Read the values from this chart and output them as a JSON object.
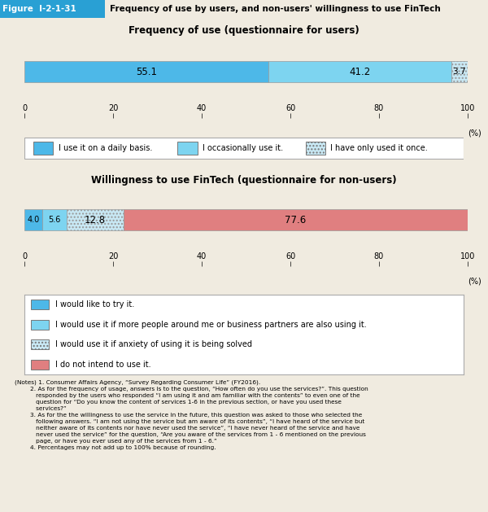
{
  "title_main": "Frequency of use by users, and non-users' willingness to use FinTech",
  "figure_label": "Figure  I-2-1-31",
  "chart1_title": "Frequency of use (questionnaire for users)",
  "chart1_values": [
    55.1,
    41.2,
    3.7
  ],
  "chart1_colors": [
    "#4db8e8",
    "#7dd4f0",
    "#c8e8f4"
  ],
  "chart1_hatches": [
    null,
    null,
    "...."
  ],
  "chart1_labels": [
    "55.1",
    "41.2",
    "3.7"
  ],
  "chart1_legend": [
    "I use it on a daily basis.",
    "I occasionally use it.",
    "I have only used it once."
  ],
  "chart1_legend_colors": [
    "#4db8e8",
    "#7dd4f0",
    "#c8e8f4"
  ],
  "chart1_legend_hatches": [
    null,
    null,
    "...."
  ],
  "chart2_title": "Willingness to use FinTech (questionnaire for non-users)",
  "chart2_values": [
    4.0,
    5.6,
    12.8,
    77.6
  ],
  "chart2_colors": [
    "#4db8e8",
    "#7dd4f0",
    "#c8e8f4",
    "#e07f80"
  ],
  "chart2_hatches": [
    null,
    null,
    "....",
    null
  ],
  "chart2_labels": [
    "4.0",
    "5.6",
    "12.8",
    "77.6"
  ],
  "chart2_legend": [
    "I would like to try it.",
    "I would use it if more people around me or business partners are also using it.",
    "I would use it if anxiety of using it is being solved",
    "I do not intend to use it."
  ],
  "chart2_legend_colors": [
    "#4db8e8",
    "#7dd4f0",
    "#c8e8f4",
    "#e07f80"
  ],
  "chart2_legend_hatches": [
    null,
    null,
    "....",
    null
  ],
  "xlim": [
    0,
    100
  ],
  "xticks": [
    0,
    20,
    40,
    60,
    80,
    100
  ],
  "xlabel_suffix": "(%)",
  "bg_color": "#f0ebe0",
  "bar_area_bg": "#ffffff",
  "header_label_bg": "#29a0d4",
  "header_bg": "#c8e4f4",
  "header_text_color": "#ffffff",
  "header_title_color": "#000000",
  "notes_line1": "(Notes) 1. Consumer Affairs Agency, “Survey Regarding Consumer Life” (FY2016).",
  "notes_line2": "        2. As for the frequency of usage, answers is to the question, “How often do you use the services?”. This question",
  "notes_line3": "           responded by the users who responded “I am using it and am familiar with the contents” to even one of the",
  "notes_line4": "           question for “Do you know the content of services 1-6 in the previous section, or have you used these",
  "notes_line5": "           services?”",
  "notes_line6": "        3. As for the the willingness to use the service in the future, this question was asked to those who selected the",
  "notes_line7": "           following answers. “I am not using the service but am aware of its contents”, “I have heard of the service but",
  "notes_line8": "           neither aware of its contents nor have never used the service”, “I have never heard of the service and have",
  "notes_line9": "           never used the service” for the question, “Are you aware of the services from 1 - 6 mentioned on the previous",
  "notes_line10": "           page, or have you ever used any of the services from 1 - 6.”",
  "notes_line11": "        4. Percentages may not add up to 100% because of rounding."
}
